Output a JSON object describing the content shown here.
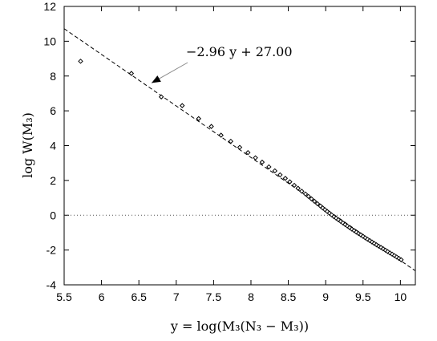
{
  "chart_data": {
    "type": "scatter",
    "title": "",
    "xlabel": "y  =  log(M₃(N₃ − M₃))",
    "ylabel": "log W(M₃)",
    "xlim": [
      5.5,
      10.2
    ],
    "ylim": [
      -4,
      12
    ],
    "xticks": [
      "5.5",
      "6",
      "6.5",
      "7",
      "7.5",
      "8",
      "8.5",
      "9",
      "9.5",
      "10"
    ],
    "yticks": [
      "-4",
      "-2",
      "0",
      "2",
      "4",
      "6",
      "8",
      "10",
      "12"
    ],
    "grid": false,
    "legend": "none",
    "reference_line_y": 0,
    "fit_line": {
      "slope": -2.96,
      "intercept": 27.0,
      "label": "−2.96 y + 27.00"
    },
    "annotation_point": {
      "x": 6.67,
      "y": 7.6
    },
    "series": [
      {
        "marker": "diamond",
        "x": [
          5.72,
          6.4,
          6.8,
          7.08,
          7.3,
          7.47,
          7.6,
          7.73,
          7.85,
          7.96,
          8.06,
          8.15,
          8.24,
          8.32,
          8.39,
          8.46,
          8.52,
          8.58,
          8.63,
          8.68,
          8.73,
          8.77,
          8.81,
          8.85,
          8.89,
          8.93,
          8.96,
          8.99,
          9.02,
          9.05,
          9.08,
          9.11,
          9.14,
          9.17,
          9.2,
          9.23,
          9.26,
          9.29,
          9.32,
          9.35,
          9.38,
          9.41,
          9.44,
          9.47,
          9.5,
          9.53,
          9.56,
          9.59,
          9.62,
          9.65,
          9.68,
          9.71,
          9.74,
          9.77,
          9.8,
          9.83,
          9.86,
          9.89,
          9.92,
          9.95,
          9.98,
          10.01
        ],
        "y": [
          8.85,
          8.15,
          6.8,
          6.3,
          5.55,
          5.1,
          4.6,
          4.25,
          3.9,
          3.6,
          3.3,
          3.05,
          2.78,
          2.55,
          2.32,
          2.12,
          1.92,
          1.72,
          1.55,
          1.38,
          1.22,
          1.08,
          0.94,
          0.8,
          0.66,
          0.53,
          0.42,
          0.32,
          0.22,
          0.12,
          0.02,
          -0.08,
          -0.17,
          -0.26,
          -0.35,
          -0.44,
          -0.53,
          -0.62,
          -0.71,
          -0.8,
          -0.88,
          -0.97,
          -1.05,
          -1.13,
          -1.21,
          -1.3,
          -1.38,
          -1.46,
          -1.54,
          -1.62,
          -1.7,
          -1.78,
          -1.85,
          -1.93,
          -2.01,
          -2.09,
          -2.17,
          -2.24,
          -2.32,
          -2.4,
          -2.48,
          -2.56
        ]
      }
    ]
  }
}
